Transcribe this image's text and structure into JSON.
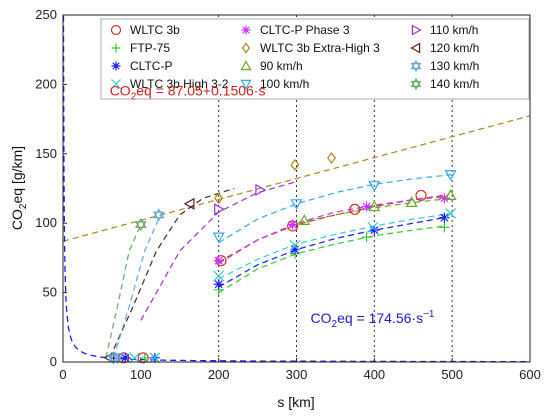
{
  "chart_data": {
    "type": "scatter",
    "xlabel_main": "s [km]",
    "ylabel": {
      "base": "CO",
      "sub": "2",
      "rest": "eq [g/km]"
    },
    "xlim": [
      0,
      600
    ],
    "ylim": [
      0,
      250
    ],
    "xticks": [
      0,
      100,
      200,
      300,
      400,
      500,
      600
    ],
    "yticks": [
      0,
      50,
      100,
      150,
      200,
      250
    ],
    "grid": "vertical dotted lines at 200, 300, 400, 500",
    "legend_position": "top",
    "series": [
      {
        "name": "WLTC 3b",
        "marker": "circle",
        "color": "#cc3333",
        "points": [
          [
            78,
            3
          ],
          [
            103,
            3
          ],
          [
            203,
            73
          ],
          [
            295,
            98
          ],
          [
            375,
            110
          ],
          [
            460,
            120
          ]
        ],
        "fit": [
          [
            200,
            72
          ],
          [
            250,
            88
          ],
          [
            300,
            99
          ],
          [
            350,
            106
          ],
          [
            400,
            112
          ],
          [
            450,
            117
          ],
          [
            490,
            120
          ]
        ]
      },
      {
        "name": "FTP-75",
        "marker": "plus",
        "color": "#33cc33",
        "points": [
          [
            80,
            3
          ],
          [
            105,
            3
          ],
          [
            200,
            52
          ],
          [
            298,
            78
          ],
          [
            390,
            90
          ],
          [
            490,
            97
          ]
        ],
        "fit": [
          [
            200,
            50
          ],
          [
            250,
            67
          ],
          [
            300,
            78
          ],
          [
            350,
            85
          ],
          [
            400,
            91
          ],
          [
            450,
            95
          ],
          [
            490,
            98
          ]
        ]
      },
      {
        "name": "CLTC-P",
        "marker": "asterisk",
        "color": "#1a1aff",
        "points": [
          [
            80,
            3
          ],
          [
            118,
            3
          ],
          [
            200,
            56
          ],
          [
            298,
            81
          ],
          [
            400,
            95
          ],
          [
            490,
            104
          ]
        ],
        "fit": [
          [
            200,
            54
          ],
          [
            250,
            70
          ],
          [
            300,
            81
          ],
          [
            350,
            89
          ],
          [
            400,
            95
          ],
          [
            450,
            100
          ],
          [
            490,
            104
          ]
        ]
      },
      {
        "name": "WLTC 3b High 3-2",
        "marker": "x",
        "color": "#33cccc",
        "points": [
          [
            92,
            3
          ],
          [
            118,
            3
          ],
          [
            200,
            62
          ],
          [
            298,
            84
          ],
          [
            398,
            97
          ],
          [
            498,
            107
          ]
        ],
        "fit": [
          [
            200,
            60
          ],
          [
            250,
            74
          ],
          [
            300,
            85
          ],
          [
            350,
            92
          ],
          [
            400,
            98
          ],
          [
            450,
            103
          ],
          [
            500,
            107
          ]
        ]
      },
      {
        "name": "CLTC-P Phase 3",
        "marker": "asterisk",
        "color": "#cc33ff",
        "points": [
          [
            200,
            73
          ],
          [
            295,
            99
          ],
          [
            390,
            112
          ],
          [
            490,
            118
          ]
        ],
        "fit": [
          [
            200,
            71
          ],
          [
            250,
            88
          ],
          [
            300,
            100
          ],
          [
            350,
            108
          ],
          [
            400,
            113
          ],
          [
            450,
            117
          ],
          [
            490,
            119
          ]
        ]
      },
      {
        "name": "WLTC 3b Extra-High 3",
        "marker": "diamond",
        "color": "#aa8822",
        "points": [
          [
            200,
            118
          ],
          [
            298,
            142
          ],
          [
            345,
            147
          ]
        ],
        "fit": [
          [
            0,
            87.05
          ],
          [
            600,
            177.4
          ]
        ]
      },
      {
        "name": "90 km/h",
        "marker": "triangle-up",
        "color": "#66aa22",
        "points": [
          [
            310,
            102
          ],
          [
            400,
            112
          ],
          [
            448,
            115
          ],
          [
            498,
            120
          ]
        ],
        "fit": [
          [
            300,
            100
          ],
          [
            350,
            106
          ],
          [
            400,
            111
          ],
          [
            450,
            115
          ],
          [
            500,
            118
          ]
        ]
      },
      {
        "name": "100 km/h",
        "marker": "triangle-down",
        "color": "#33aaee",
        "points": [
          [
            70,
            3
          ],
          [
            200,
            90
          ],
          [
            300,
            114
          ],
          [
            400,
            127
          ],
          [
            498,
            135
          ]
        ],
        "fit": [
          [
            200,
            86
          ],
          [
            250,
            103
          ],
          [
            300,
            114
          ],
          [
            350,
            122
          ],
          [
            400,
            128
          ],
          [
            450,
            132
          ],
          [
            500,
            135
          ]
        ]
      },
      {
        "name": "110 km/h",
        "marker": "triangle-right",
        "color": "#9933cc",
        "points": [
          [
            200,
            110
          ],
          [
            253,
            124
          ]
        ],
        "fit": [
          [
            100,
            30
          ],
          [
            150,
            80
          ],
          [
            200,
            108
          ],
          [
            250,
            122
          ],
          [
            300,
            130
          ]
        ]
      },
      {
        "name": "120 km/h",
        "marker": "triangle-left",
        "color": "#552222",
        "points": [
          [
            60,
            3
          ],
          [
            163,
            114
          ]
        ],
        "fit": [
          [
            60,
            3
          ],
          [
            90,
            40
          ],
          [
            120,
            80
          ],
          [
            150,
            106
          ],
          [
            180,
            118
          ],
          [
            220,
            125
          ]
        ]
      },
      {
        "name": "130 km/h",
        "marker": "hexagram",
        "color": "#66aadd",
        "points": [
          [
            65,
            3
          ],
          [
            123,
            106
          ]
        ],
        "fit": [
          [
            65,
            3
          ],
          [
            85,
            40
          ],
          [
            105,
            80
          ],
          [
            125,
            106
          ]
        ]
      },
      {
        "name": "140 km/h",
        "marker": "hexagram",
        "color": "#66aa66",
        "points": [
          [
            100,
            99
          ]
        ],
        "fit": [
          [
            55,
            3
          ],
          [
            70,
            40
          ],
          [
            85,
            80
          ],
          [
            100,
            99
          ]
        ]
      }
    ],
    "inverse_curve": {
      "color": "#1a1aff",
      "k": 174.56
    },
    "annotations": [
      {
        "prefix": "CO",
        "sub": "2",
        "text": "eq = 87.05+0.1506·s",
        "color": "#cc2222",
        "x": 60,
        "y": 192
      },
      {
        "prefix": "CO",
        "sub": "2",
        "text": "eq = 174.56·s",
        "sup": "−1",
        "color": "#1a1acc",
        "x": 318,
        "y": 28
      }
    ]
  }
}
